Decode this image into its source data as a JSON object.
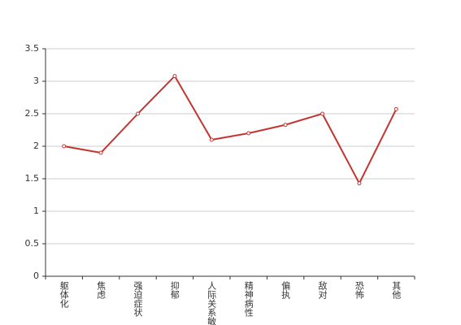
{
  "chart_data": {
    "type": "line",
    "categories": [
      "躯体化",
      "焦虑",
      "强迫症状",
      "抑郁",
      "人际关系敏感",
      "精神病性",
      "偏执",
      "敌对",
      "恐怖",
      "其他"
    ],
    "series": [
      {
        "color": "#c23531",
        "values": [
          2.0,
          1.9,
          2.5,
          3.08,
          2.1,
          2.2,
          2.33,
          2.5,
          1.43,
          2.57
        ]
      }
    ],
    "ylim": [
      0,
      3.5
    ],
    "yticks": [
      0,
      {
        "value": 0.5,
        "label": "0.5"
      },
      1,
      {
        "value": 1.5,
        "label": "1.5"
      },
      2,
      {
        "value": 2.5,
        "label": "2.5"
      },
      3,
      {
        "value": 3.5,
        "label": "3.5"
      }
    ],
    "grid": true
  }
}
